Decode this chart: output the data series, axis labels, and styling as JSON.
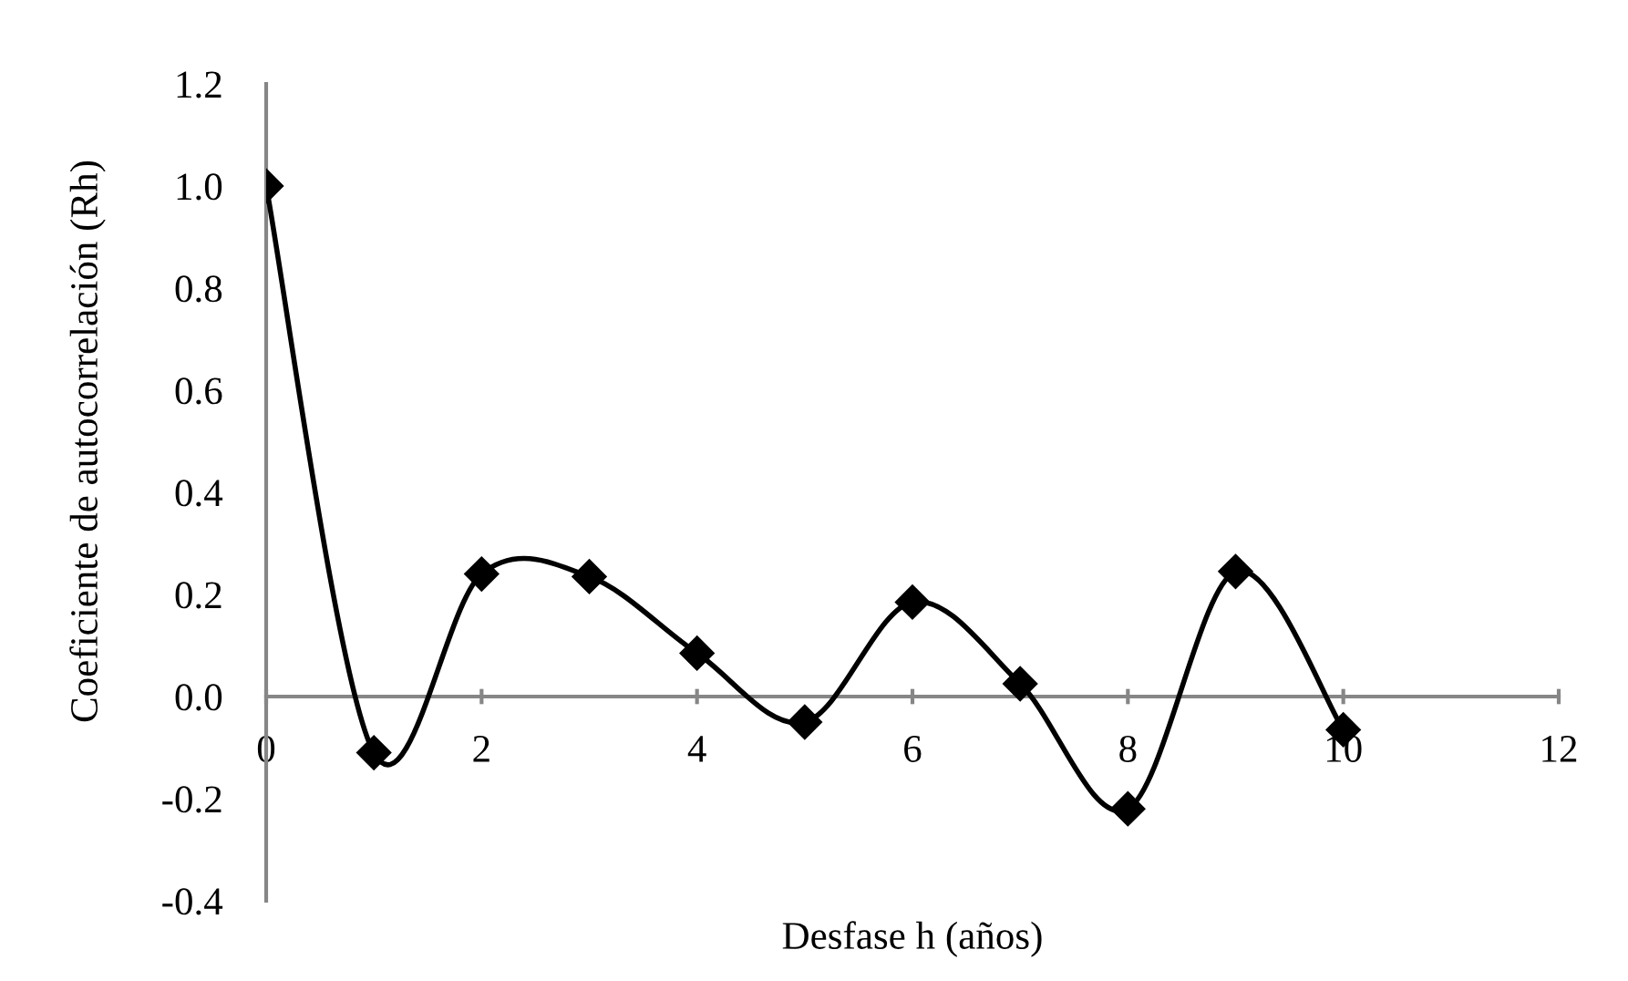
{
  "chart_data": {
    "type": "line",
    "xlabel": "Desfase h (años)",
    "ylabel": "Coeficiente de autocorrelación (Rh)",
    "x": [
      0,
      1,
      2,
      3,
      4,
      5,
      6,
      7,
      8,
      9,
      10
    ],
    "series": [
      {
        "color": "#000000",
        "values": [
          1.0,
          -0.11,
          0.24,
          0.235,
          0.085,
          -0.05,
          0.185,
          0.025,
          -0.22,
          0.245,
          -0.065
        ]
      }
    ],
    "xlim": [
      0,
      12
    ],
    "xticks": [
      0,
      2,
      4,
      6,
      8,
      10,
      12
    ],
    "ylim": [
      -0.4,
      1.2
    ],
    "yticks": [
      {
        "value": -0.4,
        "label": "-0.4"
      },
      {
        "value": -0.2,
        "label": "-0.2"
      },
      {
        "value": 0,
        "label": "0.0"
      },
      {
        "value": 0.2,
        "label": "0.2"
      },
      {
        "value": 0.4,
        "label": "0.4"
      },
      {
        "value": 0.6,
        "label": "0.6"
      },
      {
        "value": 0.8,
        "label": "0.8"
      },
      {
        "value": 1.0,
        "label": "1.0"
      },
      {
        "value": 1.2,
        "label": "1.2"
      }
    ],
    "marker": "diamond",
    "line_style": "solid",
    "grid": false
  }
}
